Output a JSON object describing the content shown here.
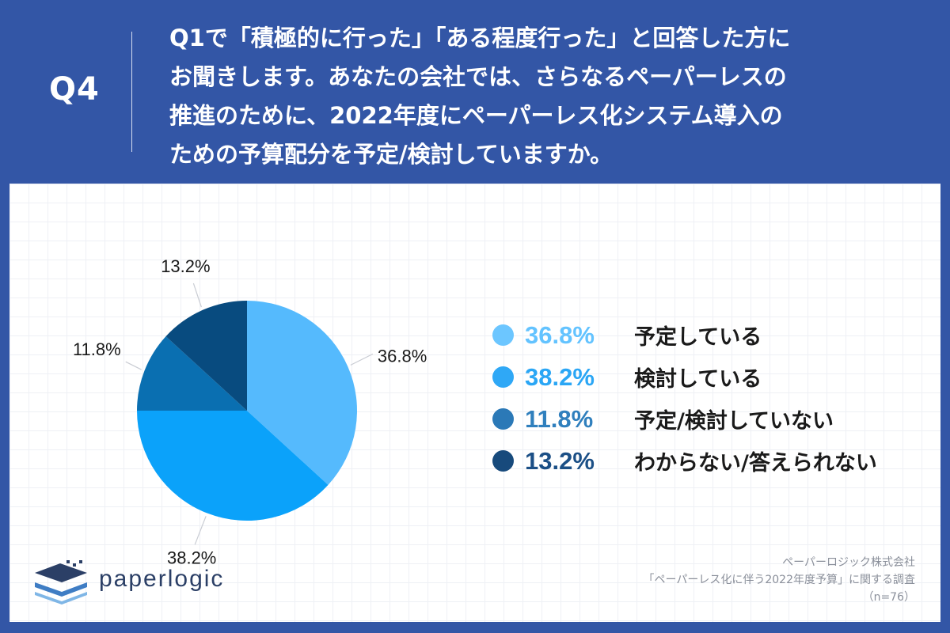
{
  "header": {
    "question_number": "Q4",
    "question_lines": [
      "Q1で「積極的に行った」「ある程度行った」と回答した方に",
      "お聞きします。あなたの会社では、さらなるペーパーレスの",
      "推進のために、2022年度にペーパーレス化システム導入の",
      "ための予算配分を予定/検討していますか。"
    ]
  },
  "chart_data": {
    "type": "pie",
    "slices": [
      {
        "label": "予定している",
        "value": 36.8,
        "value_label": "36.8%",
        "color": "#55bafd"
      },
      {
        "label": "検討している",
        "value": 38.2,
        "value_label": "38.2%",
        "color": "#0ba2fa"
      },
      {
        "label": "予定/検討していない",
        "value": 11.8,
        "value_label": "11.8%",
        "color": "#0a6fb1"
      },
      {
        "label": "わからない/答えられない",
        "value": 13.2,
        "value_label": "13.2%",
        "color": "#084b7f"
      }
    ],
    "legend_placement": "right",
    "start_angle": "12 o'clock",
    "direction": "clockwise"
  },
  "legend_colors": {
    "pct_text": [
      "#63c3ff",
      "#2aa6f5",
      "#2f7fbd",
      "#1b4f86"
    ],
    "dots": [
      "#6cc6ff",
      "#2fa8f6",
      "#2b79b7",
      "#174a7c"
    ]
  },
  "source": {
    "company": "ペーパーロジック株式会社",
    "survey": "「ペーパーレス化に伴う2022年度予算」に関する調査",
    "n": "（n=76）"
  },
  "logo": {
    "text": "paperlogic",
    "icon": "paperlogic-logo-icon"
  }
}
